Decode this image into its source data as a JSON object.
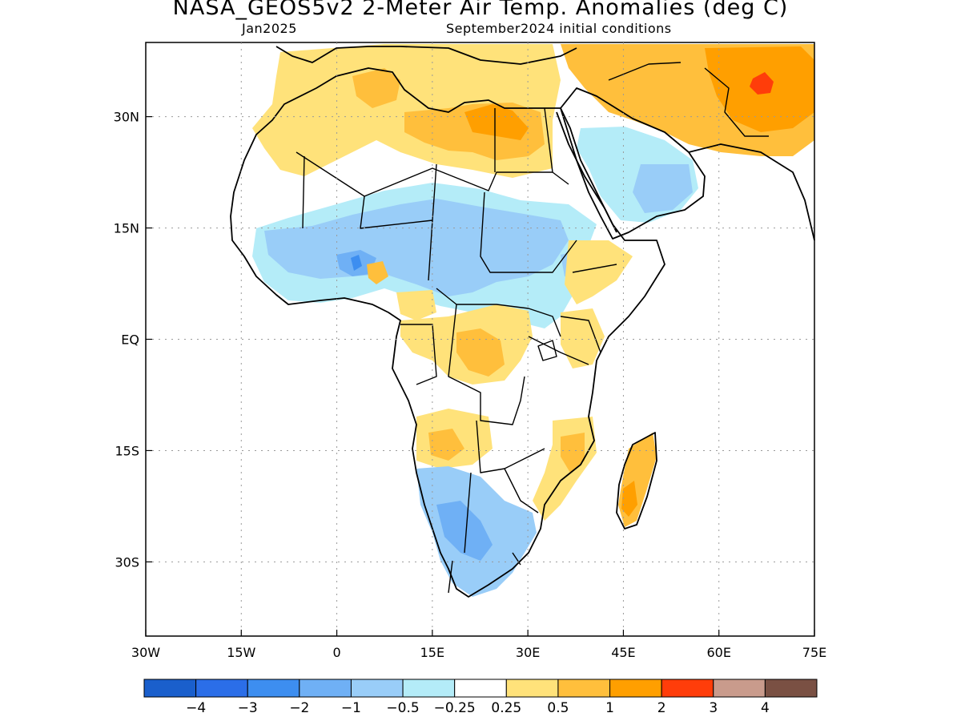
{
  "title": "NASA_GEOS5v2 2-Meter Air Temp. Anomalies (deg C)",
  "subtitle_left": "Jan2025",
  "subtitle_right": "September2024 initial conditions",
  "map": {
    "lon_range": [
      -30,
      75
    ],
    "lat_range": [
      -40,
      40
    ],
    "x_ticks": [
      {
        "value": -30,
        "label": "30W"
      },
      {
        "value": -15,
        "label": "15W"
      },
      {
        "value": 0,
        "label": "0"
      },
      {
        "value": 15,
        "label": "15E"
      },
      {
        "value": 30,
        "label": "30E"
      },
      {
        "value": 45,
        "label": "45E"
      },
      {
        "value": 60,
        "label": "60E"
      },
      {
        "value": 75,
        "label": "75E"
      }
    ],
    "y_ticks": [
      {
        "value": 30,
        "label": "30N"
      },
      {
        "value": 15,
        "label": "15N"
      },
      {
        "value": 0,
        "label": "EQ"
      },
      {
        "value": -15,
        "label": "15S"
      },
      {
        "value": -30,
        "label": "30S"
      }
    ],
    "grid": "dotted"
  },
  "colorbar": {
    "colors": [
      "#1a5fcc",
      "#2b6ee8",
      "#3d8ef0",
      "#6fb0f5",
      "#99cdf8",
      "#b4ecf8",
      "#ffffff",
      "#ffe27a",
      "#ffbf3c",
      "#ff9f00",
      "#ff3d0a",
      "#c99b8c",
      "#7a5043"
    ],
    "labels": [
      "-4",
      "-3",
      "-2",
      "-1",
      "-0.5",
      "-0.25",
      "0.25",
      "0.5",
      "1",
      "2",
      "3",
      "4"
    ]
  }
}
